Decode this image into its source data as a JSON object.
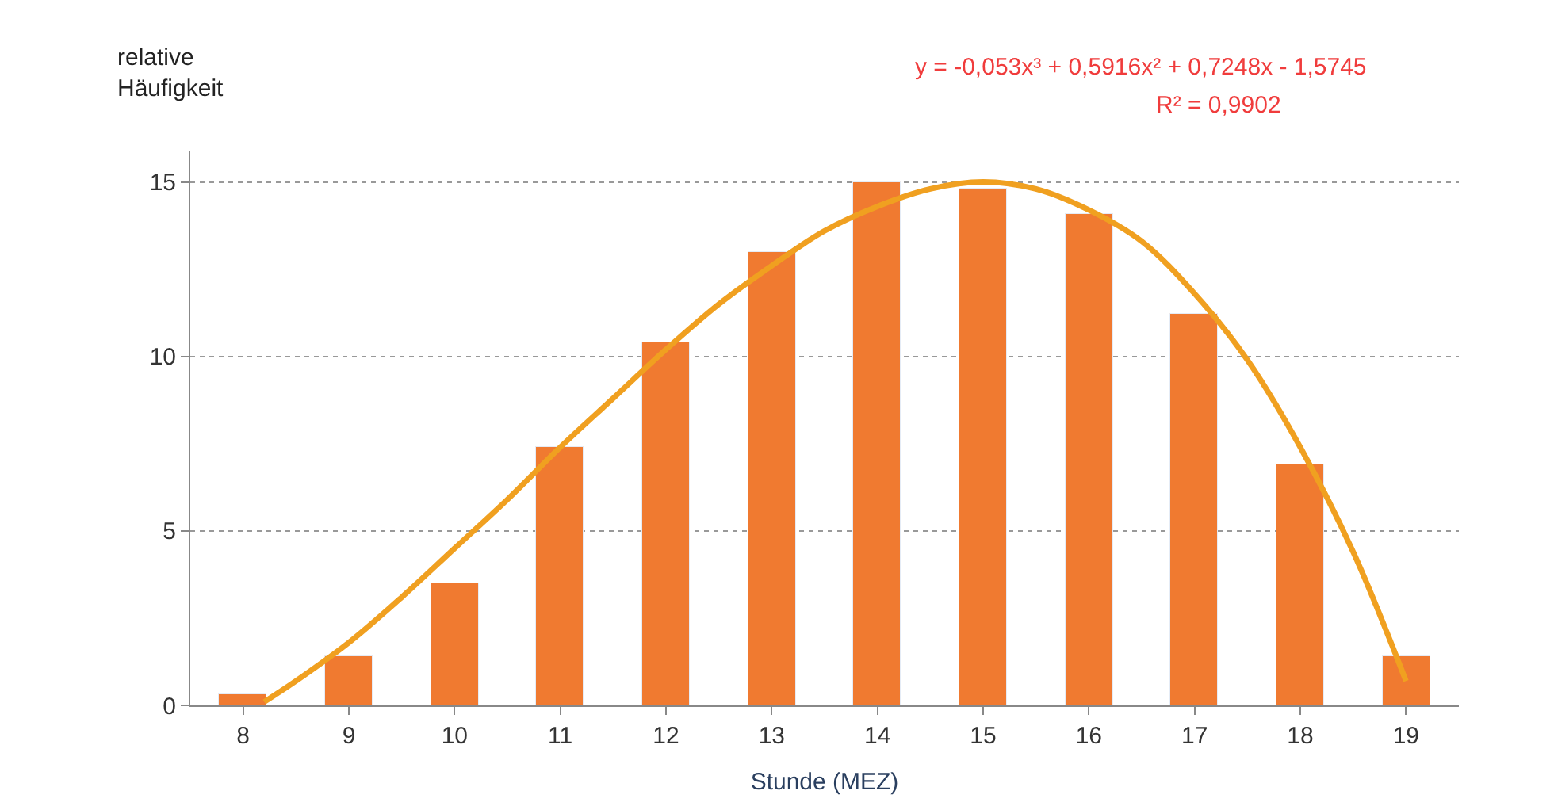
{
  "chart_data": {
    "type": "bar",
    "ylabel": "relative Häufigkeit",
    "xlabel": "Stunde (MEZ)",
    "annotations": [
      "y = -0,053x³ + 0,5916x² + 0,7248x - 1,5745",
      "R² = 0,9902"
    ],
    "x": [
      8,
      9,
      10,
      11,
      12,
      13,
      14,
      15,
      16,
      17,
      18,
      19
    ],
    "series": [
      {
        "color": "#f07a30",
        "values": [
          0.3,
          1.4,
          3.5,
          7.4,
          10.4,
          13.0,
          15.0,
          14.8,
          14.1,
          11.2,
          6.9,
          1.4
        ]
      },
      {
        "type": "line",
        "color": "#f0a020",
        "x": [
          8.2,
          8.5,
          9,
          9.5,
          10,
          10.5,
          11,
          11.5,
          12,
          12.5,
          13,
          13.5,
          14,
          14.5,
          15,
          15.5,
          16,
          16.5,
          17,
          17.5,
          18,
          18.5,
          19
        ],
        "values": [
          0.1,
          0.7,
          1.8,
          3.1,
          4.5,
          5.9,
          7.4,
          8.8,
          10.2,
          11.5,
          12.6,
          13.6,
          14.3,
          14.8,
          15.0,
          14.8,
          14.2,
          13.3,
          11.8,
          9.9,
          7.4,
          4.4,
          0.7
        ]
      }
    ],
    "xlim": [
      7.5,
      19.5
    ],
    "xticks": [
      8,
      9,
      10,
      11,
      12,
      13,
      14,
      15,
      16,
      17,
      18,
      19
    ],
    "ylim": [
      0,
      15.9
    ],
    "yticks": [
      0,
      5,
      10,
      15
    ],
    "grid": "y",
    "legend": false,
    "line_style": "solid",
    "marker": "none"
  }
}
